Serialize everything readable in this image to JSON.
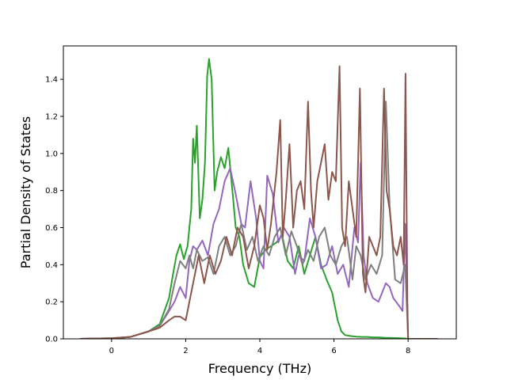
{
  "chart_data": {
    "type": "line",
    "xlabel": "Frequency (THz)",
    "ylabel": "Partial Density of States",
    "xlim": [
      -1.3,
      9.3
    ],
    "ylim": [
      0.0,
      1.58
    ],
    "xticks": [
      "0",
      "2",
      "4",
      "6",
      "8"
    ],
    "yticks": [
      "0.0",
      "0.2",
      "0.4",
      "0.6",
      "0.8",
      "1.0",
      "1.2",
      "1.4"
    ],
    "grid": false,
    "legend": "none",
    "series": [
      {
        "color": "#2ca02c",
        "x": [
          -0.85,
          0.0,
          0.5,
          1.0,
          1.3,
          1.55,
          1.65,
          1.75,
          1.85,
          1.95,
          2.05,
          2.15,
          2.2,
          2.25,
          2.3,
          2.38,
          2.45,
          2.52,
          2.58,
          2.63,
          2.7,
          2.78,
          2.85,
          2.95,
          3.05,
          3.15,
          3.25,
          3.35,
          3.45,
          3.55,
          3.7,
          3.85,
          4.0,
          4.15,
          4.3,
          4.45,
          4.6,
          4.75,
          4.9,
          5.05,
          5.2,
          5.35,
          5.5,
          5.65,
          5.8,
          5.95,
          6.1,
          6.2,
          6.3,
          6.45,
          6.6,
          6.75,
          6.9,
          7.05,
          7.2,
          7.35,
          7.5,
          7.65,
          7.8,
          7.9,
          7.95,
          8.0,
          8.8
        ],
        "y": [
          0.0,
          0.003,
          0.01,
          0.04,
          0.08,
          0.22,
          0.34,
          0.45,
          0.51,
          0.43,
          0.5,
          0.7,
          1.08,
          0.95,
          1.15,
          0.65,
          0.75,
          0.95,
          1.42,
          1.51,
          1.4,
          0.8,
          0.9,
          0.98,
          0.92,
          1.03,
          0.82,
          0.6,
          0.55,
          0.4,
          0.3,
          0.28,
          0.44,
          0.48,
          0.5,
          0.52,
          0.56,
          0.42,
          0.38,
          0.5,
          0.35,
          0.45,
          0.55,
          0.4,
          0.32,
          0.25,
          0.1,
          0.04,
          0.02,
          0.015,
          0.012,
          0.01,
          0.01,
          0.008,
          0.008,
          0.006,
          0.005,
          0.004,
          0.003,
          0.002,
          0.001,
          0.0,
          0.0
        ]
      },
      {
        "color": "#9467bd",
        "x": [
          -0.85,
          0.0,
          0.5,
          1.0,
          1.3,
          1.55,
          1.7,
          1.85,
          2.0,
          2.1,
          2.2,
          2.3,
          2.45,
          2.6,
          2.75,
          2.9,
          3.05,
          3.2,
          3.35,
          3.5,
          3.6,
          3.75,
          3.9,
          4.0,
          4.1,
          4.2,
          4.35,
          4.5,
          4.65,
          4.8,
          4.95,
          5.05,
          5.2,
          5.35,
          5.5,
          5.65,
          5.8,
          5.95,
          6.1,
          6.25,
          6.4,
          6.55,
          6.65,
          6.72,
          6.8,
          6.9,
          7.05,
          7.2,
          7.3,
          7.4,
          7.5,
          7.6,
          7.75,
          7.85,
          7.92,
          8.0,
          8.8
        ],
        "y": [
          0.0,
          0.003,
          0.01,
          0.04,
          0.07,
          0.15,
          0.2,
          0.28,
          0.22,
          0.42,
          0.5,
          0.48,
          0.53,
          0.45,
          0.62,
          0.7,
          0.85,
          0.92,
          0.78,
          0.62,
          0.6,
          0.85,
          0.65,
          0.42,
          0.38,
          0.88,
          0.78,
          0.52,
          0.6,
          0.55,
          0.35,
          0.45,
          0.42,
          0.65,
          0.55,
          0.38,
          0.4,
          0.5,
          0.35,
          0.4,
          0.28,
          0.6,
          0.52,
          0.95,
          0.45,
          0.3,
          0.22,
          0.2,
          0.25,
          0.3,
          0.28,
          0.22,
          0.18,
          0.15,
          0.62,
          0.0,
          0.0
        ]
      },
      {
        "color": "#7f7f7f",
        "x": [
          -0.85,
          0.0,
          0.5,
          1.0,
          1.3,
          1.55,
          1.7,
          1.85,
          2.0,
          2.1,
          2.2,
          2.3,
          2.45,
          2.6,
          2.75,
          2.9,
          3.05,
          3.2,
          3.35,
          3.5,
          3.65,
          3.8,
          3.95,
          4.1,
          4.25,
          4.4,
          4.55,
          4.7,
          4.85,
          5.0,
          5.15,
          5.3,
          5.45,
          5.6,
          5.75,
          5.9,
          6.05,
          6.2,
          6.35,
          6.5,
          6.6,
          6.72,
          6.85,
          7.0,
          7.15,
          7.3,
          7.4,
          7.5,
          7.65,
          7.8,
          7.92,
          8.0,
          8.8
        ],
        "y": [
          0.0,
          0.003,
          0.01,
          0.04,
          0.07,
          0.16,
          0.3,
          0.42,
          0.38,
          0.45,
          0.38,
          0.48,
          0.42,
          0.44,
          0.35,
          0.5,
          0.55,
          0.45,
          0.5,
          0.62,
          0.48,
          0.55,
          0.42,
          0.5,
          0.45,
          0.55,
          0.6,
          0.45,
          0.58,
          0.5,
          0.4,
          0.48,
          0.42,
          0.55,
          0.6,
          0.45,
          0.4,
          0.5,
          0.55,
          0.32,
          0.5,
          0.45,
          0.32,
          0.4,
          0.35,
          0.45,
          1.28,
          0.72,
          0.32,
          0.3,
          0.4,
          0.0,
          0.0
        ]
      },
      {
        "color": "#8c564b",
        "x": [
          -0.85,
          0.0,
          0.5,
          1.0,
          1.3,
          1.55,
          1.7,
          1.85,
          2.0,
          2.1,
          2.2,
          2.35,
          2.5,
          2.65,
          2.8,
          2.95,
          3.1,
          3.25,
          3.4,
          3.55,
          3.7,
          3.85,
          4.0,
          4.1,
          4.2,
          4.3,
          4.45,
          4.55,
          4.62,
          4.7,
          4.8,
          4.9,
          5.0,
          5.1,
          5.2,
          5.3,
          5.38,
          5.45,
          5.55,
          5.65,
          5.75,
          5.85,
          5.95,
          6.05,
          6.15,
          6.22,
          6.3,
          6.4,
          6.5,
          6.6,
          6.7,
          6.78,
          6.85,
          6.95,
          7.05,
          7.15,
          7.25,
          7.35,
          7.42,
          7.5,
          7.6,
          7.7,
          7.8,
          7.88,
          7.93,
          7.98,
          8.0,
          8.8
        ],
        "y": [
          0.0,
          0.003,
          0.01,
          0.04,
          0.06,
          0.1,
          0.12,
          0.12,
          0.1,
          0.2,
          0.3,
          0.45,
          0.3,
          0.45,
          0.35,
          0.42,
          0.55,
          0.45,
          0.6,
          0.55,
          0.38,
          0.5,
          0.72,
          0.65,
          0.48,
          0.62,
          0.9,
          1.18,
          0.55,
          0.75,
          1.05,
          0.6,
          0.8,
          0.85,
          0.7,
          1.28,
          0.8,
          0.6,
          0.85,
          0.95,
          1.05,
          0.75,
          0.9,
          0.85,
          1.47,
          0.6,
          0.5,
          0.85,
          0.7,
          0.55,
          1.35,
          0.35,
          0.25,
          0.55,
          0.5,
          0.45,
          0.55,
          1.35,
          0.8,
          0.7,
          0.5,
          0.45,
          0.55,
          0.4,
          1.43,
          0.2,
          0.0,
          0.0
        ]
      }
    ]
  }
}
